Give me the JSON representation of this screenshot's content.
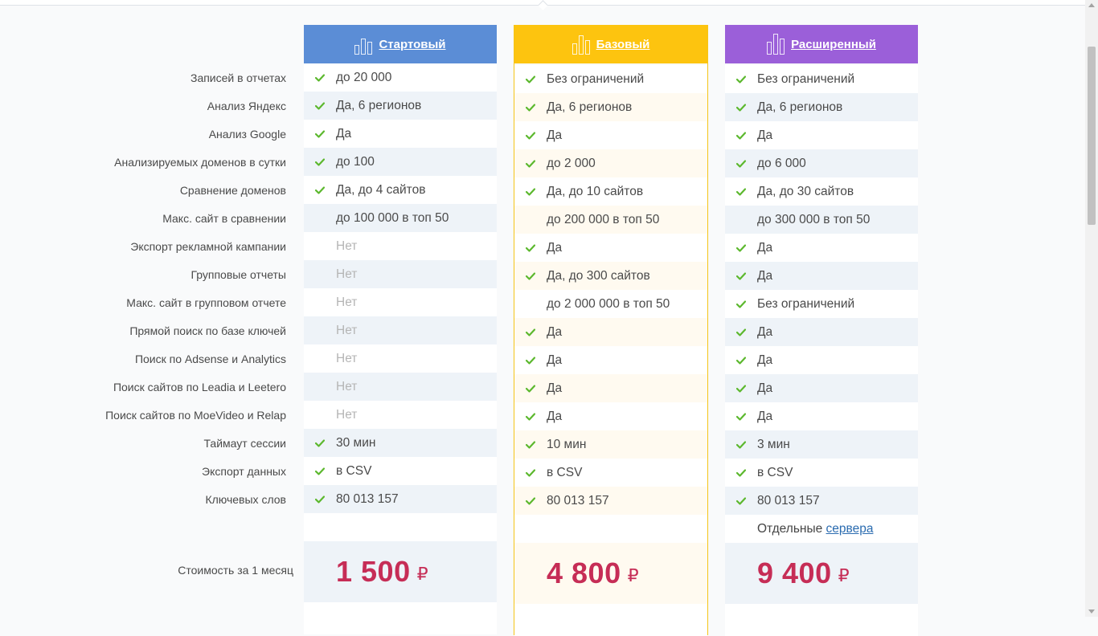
{
  "features": [
    "Записей в отчетах",
    "Анализ Яндекс",
    "Анализ Google",
    "Анализируемых доменов в сутки",
    "Сравнение доменов",
    "Макс. сайт в сравнении",
    "Экспорт рекламной кампании",
    "Групповые отчеты",
    "Макс. сайт в групповом отчете",
    "Прямой поиск по базе ключей",
    "Поиск по Adsense и Analytics",
    "Поиск сайтов по Leadia и Leetero",
    "Поиск сайтов по MoeVideo и Relap",
    "Таймаут сессии",
    "Экспорт данных",
    "Ключевых слов"
  ],
  "price_label": "Стоимость за 1 месяц",
  "plans": {
    "start": {
      "title": "Стартовый",
      "color": "#5b8dd6",
      "rows": [
        {
          "text": "до 20 000",
          "check": true
        },
        {
          "text": "Да, 6 регионов",
          "check": true
        },
        {
          "text": "Да",
          "check": true
        },
        {
          "text": "до 100",
          "check": true
        },
        {
          "text": "Да, до 4 сайтов",
          "check": true
        },
        {
          "text": "до 100 000 в топ 50",
          "check": false
        },
        {
          "text": "Нет",
          "check": false,
          "muted": true
        },
        {
          "text": "Нет",
          "check": false,
          "muted": true
        },
        {
          "text": "Нет",
          "check": false,
          "muted": true
        },
        {
          "text": "Нет",
          "check": false,
          "muted": true
        },
        {
          "text": "Нет",
          "check": false,
          "muted": true
        },
        {
          "text": "Нет",
          "check": false,
          "muted": true
        },
        {
          "text": "Нет",
          "check": false,
          "muted": true
        },
        {
          "text": "30 мин",
          "check": true
        },
        {
          "text": "в CSV",
          "check": true
        },
        {
          "text": "80 013 157",
          "check": true
        }
      ],
      "price": "1 500",
      "currency": "₽"
    },
    "base": {
      "title": "Базовый",
      "color": "#fdc40f",
      "rows": [
        {
          "text": "Без ограничений",
          "check": true
        },
        {
          "text": "Да, 6 регионов",
          "check": true
        },
        {
          "text": "Да",
          "check": true
        },
        {
          "text": "до 2 000",
          "check": true
        },
        {
          "text": "Да, до 10 сайтов",
          "check": true
        },
        {
          "text": "до 200 000 в топ 50",
          "check": false
        },
        {
          "text": "Да",
          "check": true
        },
        {
          "text": "Да, до 300 сайтов",
          "check": true
        },
        {
          "text": "до 2 000 000 в топ 50",
          "check": false
        },
        {
          "text": "Да",
          "check": true
        },
        {
          "text": "Да",
          "check": true
        },
        {
          "text": "Да",
          "check": true
        },
        {
          "text": "Да",
          "check": true
        },
        {
          "text": "10 мин",
          "check": true
        },
        {
          "text": "в CSV",
          "check": true
        },
        {
          "text": "80 013 157",
          "check": true
        }
      ],
      "price": "4 800",
      "currency": "₽"
    },
    "ext": {
      "title": "Расширенный",
      "color": "#9b5fd9",
      "rows": [
        {
          "text": "Без ограничений",
          "check": true
        },
        {
          "text": "Да, 6 регионов",
          "check": true
        },
        {
          "text": "Да",
          "check": true
        },
        {
          "text": "до 6 000",
          "check": true
        },
        {
          "text": "Да, до 30 сайтов",
          "check": true
        },
        {
          "text": "до 300 000 в топ 50",
          "check": false
        },
        {
          "text": "Да",
          "check": true
        },
        {
          "text": "Да",
          "check": true
        },
        {
          "text": "Без ограничений",
          "check": true
        },
        {
          "text": "Да",
          "check": true
        },
        {
          "text": "Да",
          "check": true
        },
        {
          "text": "Да",
          "check": true
        },
        {
          "text": "Да",
          "check": true
        },
        {
          "text": "3 мин",
          "check": true
        },
        {
          "text": "в CSV",
          "check": true
        },
        {
          "text": "80 013 157",
          "check": true
        }
      ],
      "extra_prefix": "Отдельные",
      "extra_link": "сервера",
      "price": "9 400",
      "currency": "₽"
    }
  },
  "colors": {
    "check": "#5cb82e",
    "price": "#c62d56"
  }
}
